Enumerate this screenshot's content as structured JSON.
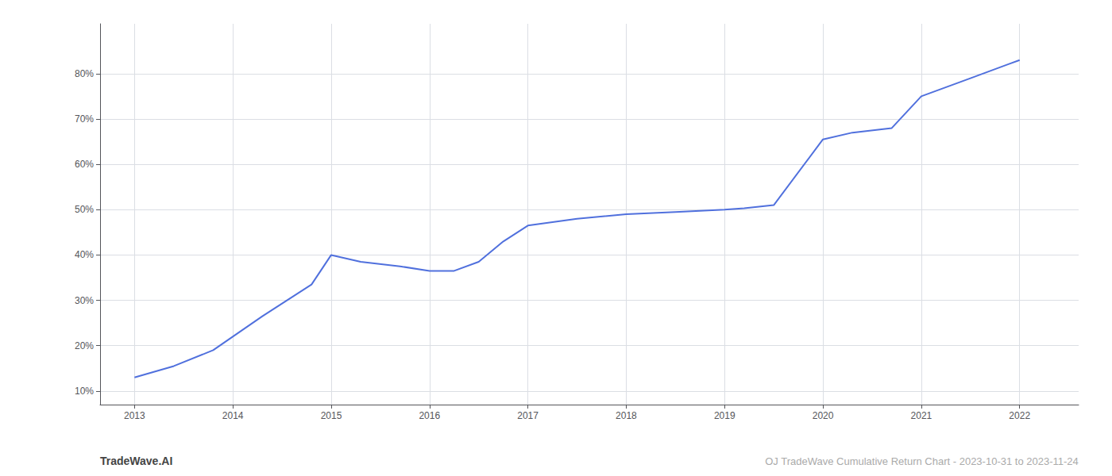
{
  "chart_data": {
    "type": "line",
    "x": [
      2013.0,
      2013.4,
      2013.8,
      2014.3,
      2014.8,
      2015.0,
      2015.3,
      2015.7,
      2016.0,
      2016.25,
      2016.5,
      2016.75,
      2017.0,
      2017.5,
      2018.0,
      2018.5,
      2019.0,
      2019.2,
      2019.5,
      2020.0,
      2020.3,
      2020.7,
      2021.0,
      2021.5,
      2022.0
    ],
    "values": [
      13.0,
      15.5,
      19.0,
      26.5,
      33.5,
      40.0,
      38.5,
      37.5,
      36.5,
      36.5,
      38.5,
      43.0,
      46.5,
      48.0,
      49.0,
      49.5,
      50.0,
      50.3,
      51.0,
      65.5,
      67.0,
      68.0,
      75.0,
      79.0,
      83.0
    ],
    "xlim": [
      2012.65,
      2022.6
    ],
    "xticks": [
      2013,
      2014,
      2015,
      2016,
      2017,
      2018,
      2019,
      2020,
      2021,
      2022
    ],
    "ylim": [
      7,
      91
    ],
    "yticks": [
      {
        "value": 10,
        "label": "10%"
      },
      {
        "value": 20,
        "label": "20%"
      },
      {
        "value": 30,
        "label": "30%"
      },
      {
        "value": 40,
        "label": "40%"
      },
      {
        "value": 50,
        "label": "50%"
      },
      {
        "value": 60,
        "label": "60%"
      },
      {
        "value": 70,
        "label": "70%"
      },
      {
        "value": 80,
        "label": "80%"
      }
    ],
    "grid": true,
    "annotations": [
      "TradeWave.AI",
      "OJ TradeWave Cumulative Return Chart - 2023-10-31 to 2023-11-24"
    ]
  }
}
